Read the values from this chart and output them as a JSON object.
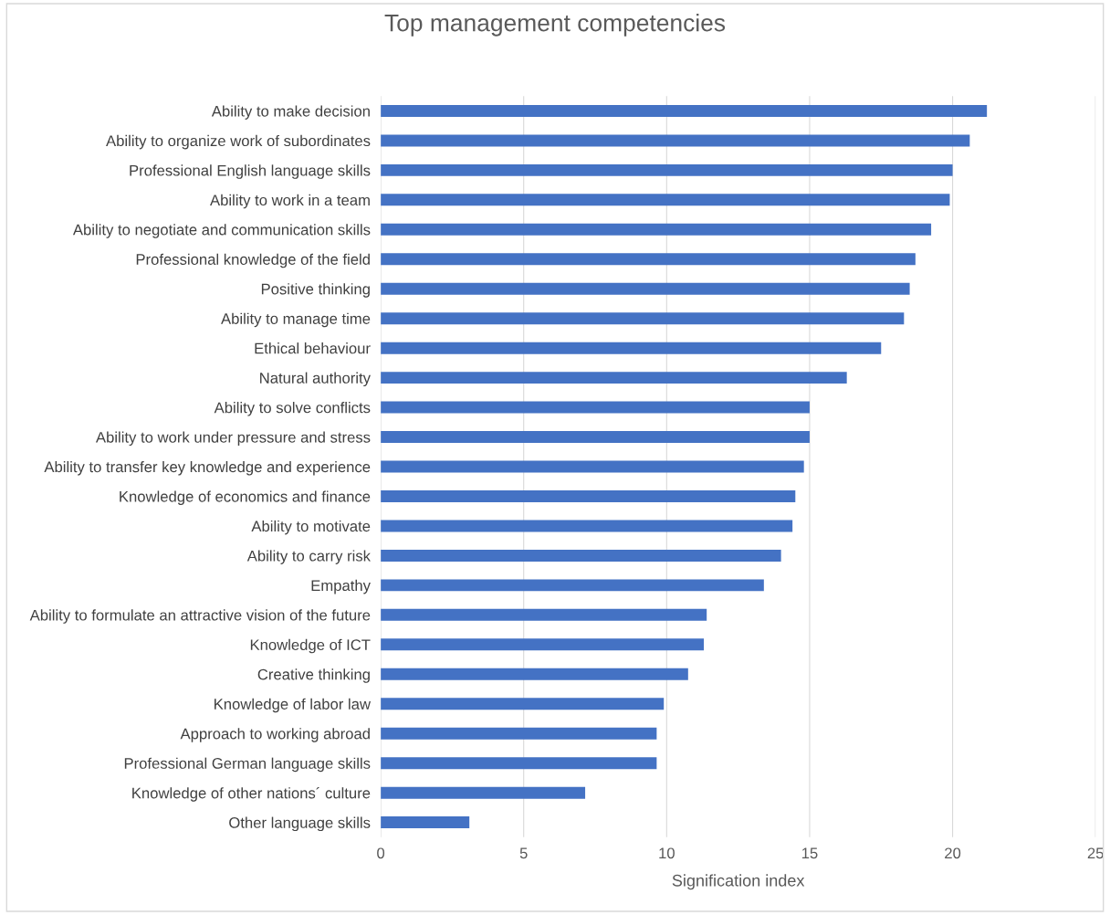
{
  "chart_data": {
    "type": "bar",
    "orientation": "horizontal",
    "title": "Top management competencies",
    "xlabel": "Signification index",
    "categories": [
      "Ability to make decision",
      "Ability to organize work of subordinates",
      "Professional English language skills",
      "Ability to work in a team",
      "Ability to negotiate and communication skills",
      "Professional knowledge of the field",
      "Positive thinking",
      "Ability to manage time",
      "Ethical behaviour",
      "Natural authority",
      "Ability to solve conflicts",
      "Ability to work under pressure and stress",
      "Ability to transfer key knowledge and experience",
      "Knowledge of economics and finance",
      "Ability to motivate",
      "Ability to carry risk",
      "Empathy",
      "Ability to formulate an attractive vision of the future",
      "Knowledge of ICT",
      "Creative thinking",
      "Knowledge of labor law",
      "Approach to working abroad",
      "Professional German language skills",
      "Knowledge of other nations´ culture",
      "Other language skills"
    ],
    "values": [
      21.2,
      20.6,
      20.0,
      19.9,
      19.25,
      18.7,
      18.5,
      18.3,
      17.5,
      16.3,
      15.0,
      15.0,
      14.8,
      14.5,
      14.4,
      14.0,
      13.4,
      11.4,
      11.3,
      10.75,
      9.9,
      9.65,
      9.65,
      7.15,
      3.1
    ],
    "color": "#4472c4",
    "xlim": [
      0,
      25
    ],
    "xticks": [
      0,
      5,
      10,
      15,
      20,
      25
    ],
    "grid": "x",
    "legend": false
  }
}
